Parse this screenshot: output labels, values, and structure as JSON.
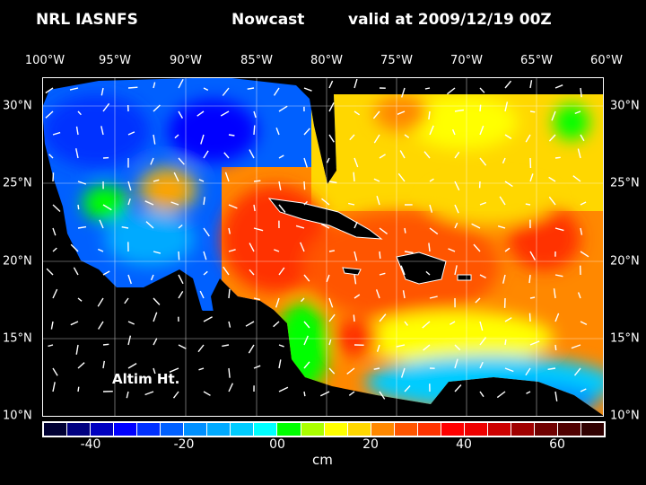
{
  "title": {
    "model": "NRL IASNFS",
    "product": "Nowcast",
    "valid": "valid at 2009/12/19 00Z"
  },
  "lon_labels": [
    "100°W",
    "95°W",
    "90°W",
    "85°W",
    "80°W",
    "75°W",
    "70°W",
    "65°W",
    "60°W"
  ],
  "lat_labels": [
    "30°N",
    "25°N",
    "20°N",
    "15°N",
    "10°N"
  ],
  "annotation": "Altim Ht.",
  "colorbar": {
    "units": "cm",
    "range": [
      -50,
      70
    ],
    "step": 5,
    "tick_labels": [
      "-40",
      "-20",
      "00",
      "20",
      "40",
      "60"
    ],
    "colors": [
      "#000033",
      "#000080",
      "#0000c0",
      "#0000ff",
      "#0030ff",
      "#0060ff",
      "#0090ff",
      "#00aaff",
      "#00ccff",
      "#00ffff",
      "#00ff00",
      "#aaff00",
      "#ffff00",
      "#ffd700",
      "#ff8800",
      "#ff5500",
      "#ff3300",
      "#ff0000",
      "#ee0000",
      "#cc0000",
      "#a00000",
      "#700000",
      "#500000",
      "#300000"
    ]
  }
}
